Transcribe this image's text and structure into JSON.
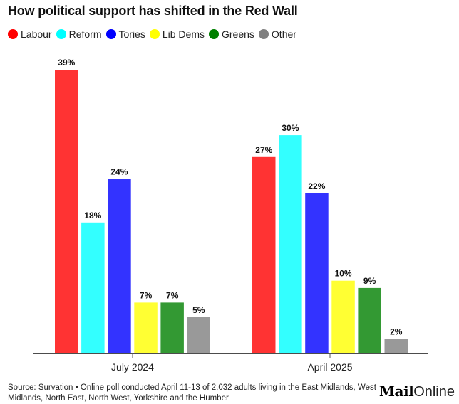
{
  "chart_data": {
    "type": "bar",
    "title": "How political support has shifted in the Red Wall",
    "xlabel": "",
    "ylabel": "",
    "ylim": [
      0,
      40
    ],
    "grid": false,
    "legend_position": "top-left",
    "categories": [
      "July 2024",
      "April 2025"
    ],
    "series": [
      {
        "name": "Labour",
        "color": "#ff0000",
        "values": [
          39,
          27
        ],
        "labels": [
          "39%",
          "27%"
        ]
      },
      {
        "name": "Reform",
        "color": "#00ffff",
        "values": [
          18,
          30
        ],
        "labels": [
          "18%",
          "30%"
        ]
      },
      {
        "name": "Tories",
        "color": "#0000ff",
        "values": [
          24,
          22
        ],
        "labels": [
          "24%",
          "22%"
        ]
      },
      {
        "name": "Lib Dems",
        "color": "#ffff00",
        "values": [
          7,
          10
        ],
        "labels": [
          "7%",
          "10%"
        ]
      },
      {
        "name": "Greens",
        "color": "#008000",
        "values": [
          7,
          9
        ],
        "labels": [
          "7%",
          "9%"
        ]
      },
      {
        "name": "Other",
        "color": "#808080",
        "values": [
          5,
          2
        ],
        "labels": [
          "5%",
          "2%"
        ]
      }
    ],
    "value_suffix": "%"
  },
  "footer": {
    "source": "Source: Survation • Online poll conducted April 11-13 of 2,032 adults living in the East Midlands, West Midlands, North East, North West, Yorkshire and the Humber"
  },
  "brand": {
    "mail": "Mail",
    "online": "Online"
  }
}
